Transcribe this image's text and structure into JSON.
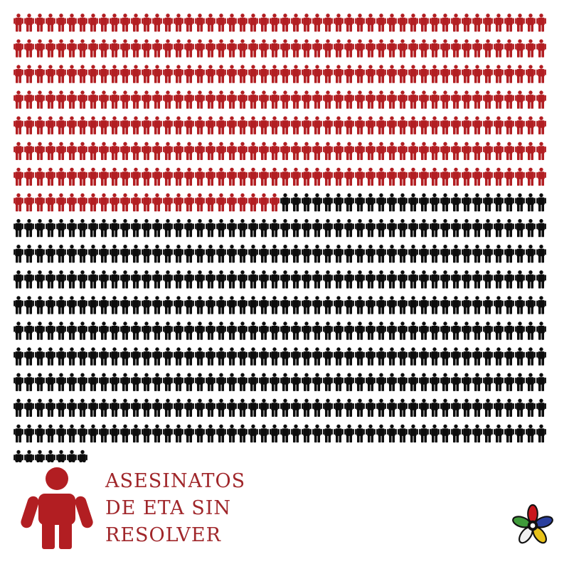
{
  "chart_data": {
    "type": "pictogram",
    "title": "",
    "categories": [
      "ASESINATOS DE ETA SIN RESOLVER",
      ""
    ],
    "values": [
      375,
      482
    ],
    "total": 857,
    "icons_per_row": 50,
    "legend_position": "bottom-left"
  },
  "legend": {
    "label": "ASESINATOS\nDE ETA SIN\nRESOLVER"
  },
  "colors": {
    "highlight": "#b21e22",
    "base": "#0c0c0c",
    "legend_text": "#a0262a",
    "background": "#ffffff"
  },
  "logo": {
    "icon": "flower-logo-icon"
  }
}
